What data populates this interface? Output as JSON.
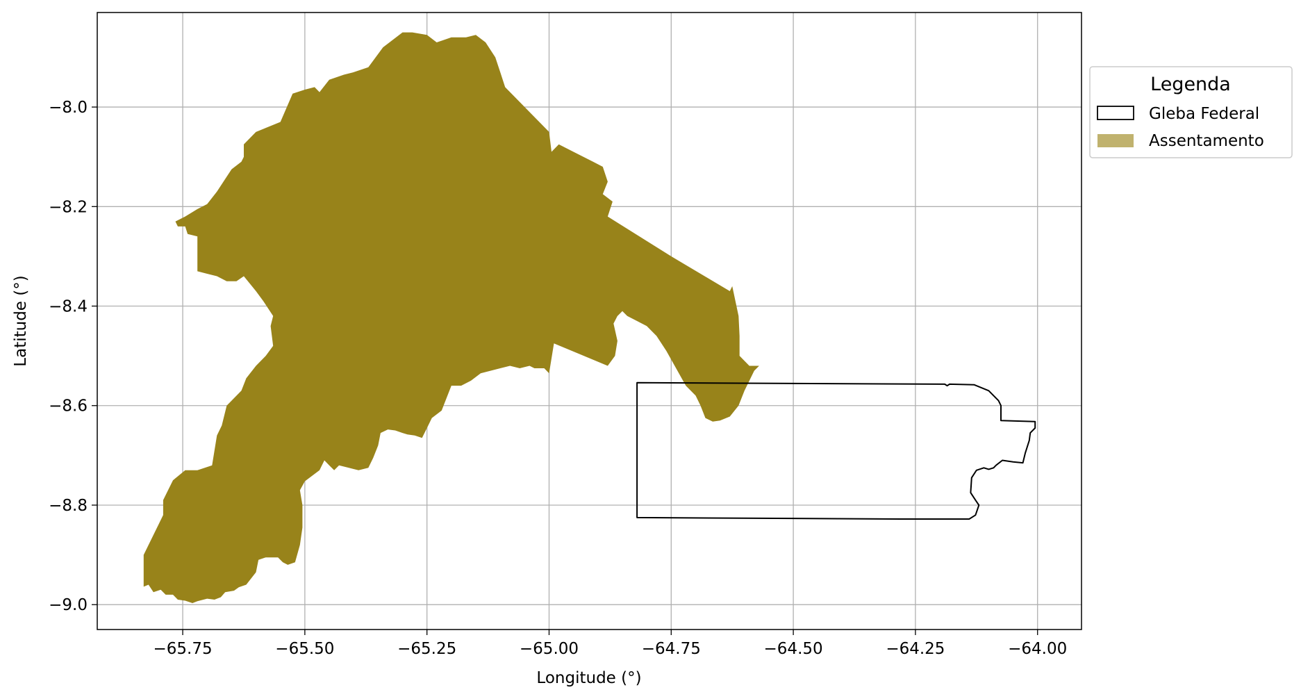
{
  "chart_data": {
    "type": "map",
    "title": "",
    "xlabel": "Longitude (°)",
    "ylabel": "Latitude (°)",
    "xlim": [
      -65.925,
      -63.91
    ],
    "ylim": [
      -9.05,
      -7.81
    ],
    "grid": true,
    "x_ticks": [
      -65.75,
      -65.5,
      -65.25,
      -65.0,
      -64.75,
      -64.5,
      -64.25,
      -64.0
    ],
    "x_tick_labels": [
      "−65.75",
      "−65.50",
      "−65.25",
      "−65.00",
      "−64.75",
      "−64.50",
      "−64.25",
      "−64.00"
    ],
    "y_ticks": [
      -8.0,
      -8.2,
      -8.4,
      -8.6,
      -8.8,
      -9.0
    ],
    "y_tick_labels": [
      "−8.0",
      "−8.2",
      "−8.4",
      "−8.6",
      "−8.8",
      "−9.0"
    ],
    "legend": {
      "title": "Legenda",
      "placement": "outside-upper-right",
      "entries": [
        {
          "label": "Gleba Federal",
          "style": "outline",
          "color": "#000000"
        },
        {
          "label": "Assentamento",
          "style": "fill",
          "color": "#c0b26e"
        }
      ]
    },
    "layers": [
      {
        "name": "Assentamento",
        "kind": "polygon",
        "fill": "#98831a",
        "coordinates": [
          [
            -65.83,
            -8.964
          ],
          [
            -65.82,
            -8.96
          ],
          [
            -65.81,
            -8.975
          ],
          [
            -65.795,
            -8.97
          ],
          [
            -65.785,
            -8.98
          ],
          [
            -65.77,
            -8.98
          ],
          [
            -65.76,
            -8.99
          ],
          [
            -65.745,
            -8.992
          ],
          [
            -65.73,
            -8.997
          ],
          [
            -65.72,
            -8.993
          ],
          [
            -65.7,
            -8.988
          ],
          [
            -65.685,
            -8.99
          ],
          [
            -65.672,
            -8.985
          ],
          [
            -65.663,
            -8.975
          ],
          [
            -65.645,
            -8.972
          ],
          [
            -65.635,
            -8.965
          ],
          [
            -65.62,
            -8.96
          ],
          [
            -65.6,
            -8.935
          ],
          [
            -65.595,
            -8.91
          ],
          [
            -65.58,
            -8.905
          ],
          [
            -65.555,
            -8.905
          ],
          [
            -65.545,
            -8.915
          ],
          [
            -65.535,
            -8.92
          ],
          [
            -65.52,
            -8.915
          ],
          [
            -65.51,
            -8.88
          ],
          [
            -65.505,
            -8.845
          ],
          [
            -65.505,
            -8.8
          ],
          [
            -65.51,
            -8.77
          ],
          [
            -65.5,
            -8.752
          ],
          [
            -65.47,
            -8.73
          ],
          [
            -65.46,
            -8.71
          ],
          [
            -65.45,
            -8.72
          ],
          [
            -65.44,
            -8.73
          ],
          [
            -65.43,
            -8.72
          ],
          [
            -65.41,
            -8.725
          ],
          [
            -65.39,
            -8.73
          ],
          [
            -65.37,
            -8.725
          ],
          [
            -65.36,
            -8.705
          ],
          [
            -65.35,
            -8.68
          ],
          [
            -65.345,
            -8.655
          ],
          [
            -65.33,
            -8.648
          ],
          [
            -65.315,
            -8.65
          ],
          [
            -65.3,
            -8.655
          ],
          [
            -65.29,
            -8.658
          ],
          [
            -65.275,
            -8.66
          ],
          [
            -65.26,
            -8.665
          ],
          [
            -65.25,
            -8.645
          ],
          [
            -65.24,
            -8.625
          ],
          [
            -65.22,
            -8.61
          ],
          [
            -65.2,
            -8.56
          ],
          [
            -65.18,
            -8.56
          ],
          [
            -65.16,
            -8.55
          ],
          [
            -65.14,
            -8.535
          ],
          [
            -65.12,
            -8.53
          ],
          [
            -65.1,
            -8.525
          ],
          [
            -65.08,
            -8.52
          ],
          [
            -65.06,
            -8.525
          ],
          [
            -65.04,
            -8.52
          ],
          [
            -65.03,
            -8.525
          ],
          [
            -65.01,
            -8.525
          ],
          [
            -65.0,
            -8.535
          ],
          [
            -64.99,
            -8.475
          ],
          [
            -64.88,
            -8.52
          ],
          [
            -64.865,
            -8.5
          ],
          [
            -64.86,
            -8.47
          ],
          [
            -64.868,
            -8.435
          ],
          [
            -64.86,
            -8.42
          ],
          [
            -64.85,
            -8.41
          ],
          [
            -64.84,
            -8.42
          ],
          [
            -64.82,
            -8.43
          ],
          [
            -64.8,
            -8.44
          ],
          [
            -64.78,
            -8.46
          ],
          [
            -64.76,
            -8.49
          ],
          [
            -64.74,
            -8.525
          ],
          [
            -64.72,
            -8.56
          ],
          [
            -64.7,
            -8.58
          ],
          [
            -64.69,
            -8.6
          ],
          [
            -64.68,
            -8.625
          ],
          [
            -64.665,
            -8.632
          ],
          [
            -64.65,
            -8.63
          ],
          [
            -64.63,
            -8.622
          ],
          [
            -64.612,
            -8.6
          ],
          [
            -64.6,
            -8.57
          ],
          [
            -64.58,
            -8.53
          ],
          [
            -64.57,
            -8.52
          ],
          [
            -64.59,
            -8.52
          ],
          [
            -64.61,
            -8.5
          ],
          [
            -64.61,
            -8.49
          ],
          [
            -64.61,
            -8.46
          ],
          [
            -64.612,
            -8.42
          ],
          [
            -64.625,
            -8.36
          ],
          [
            -64.63,
            -8.37
          ],
          [
            -64.75,
            -8.3
          ],
          [
            -64.88,
            -8.22
          ],
          [
            -64.87,
            -8.19
          ],
          [
            -64.89,
            -8.175
          ],
          [
            -64.88,
            -8.15
          ],
          [
            -64.89,
            -8.12
          ],
          [
            -64.91,
            -8.11
          ],
          [
            -64.95,
            -8.09
          ],
          [
            -64.98,
            -8.075
          ],
          [
            -64.995,
            -8.09
          ],
          [
            -65.0,
            -8.05
          ],
          [
            -65.02,
            -8.03
          ],
          [
            -65.06,
            -7.99
          ],
          [
            -65.09,
            -7.96
          ],
          [
            -65.1,
            -7.93
          ],
          [
            -65.11,
            -7.9
          ],
          [
            -65.13,
            -7.87
          ],
          [
            -65.15,
            -7.855
          ],
          [
            -65.17,
            -7.86
          ],
          [
            -65.2,
            -7.86
          ],
          [
            -65.23,
            -7.87
          ],
          [
            -65.25,
            -7.855
          ],
          [
            -65.28,
            -7.85
          ],
          [
            -65.3,
            -7.85
          ],
          [
            -65.34,
            -7.88
          ],
          [
            -65.37,
            -7.92
          ],
          [
            -65.4,
            -7.93
          ],
          [
            -65.42,
            -7.935
          ],
          [
            -65.45,
            -7.945
          ],
          [
            -65.47,
            -7.97
          ],
          [
            -65.48,
            -7.96
          ],
          [
            -65.5,
            -7.965
          ],
          [
            -65.525,
            -7.973
          ],
          [
            -65.55,
            -8.03
          ],
          [
            -65.6,
            -8.05
          ],
          [
            -65.625,
            -8.075
          ],
          [
            -65.625,
            -8.1
          ],
          [
            -65.63,
            -8.11
          ],
          [
            -65.65,
            -8.125
          ],
          [
            -65.66,
            -8.14
          ],
          [
            -65.68,
            -8.17
          ],
          [
            -65.7,
            -8.195
          ],
          [
            -65.72,
            -8.205
          ],
          [
            -65.745,
            -8.22
          ],
          [
            -65.765,
            -8.23
          ],
          [
            -65.76,
            -8.24
          ],
          [
            -65.745,
            -8.24
          ],
          [
            -65.74,
            -8.255
          ],
          [
            -65.72,
            -8.26
          ],
          [
            -65.72,
            -8.3
          ],
          [
            -65.72,
            -8.33
          ],
          [
            -65.7,
            -8.335
          ],
          [
            -65.68,
            -8.34
          ],
          [
            -65.66,
            -8.35
          ],
          [
            -65.64,
            -8.35
          ],
          [
            -65.625,
            -8.34
          ],
          [
            -65.6,
            -8.37
          ],
          [
            -65.585,
            -8.39
          ],
          [
            -65.565,
            -8.42
          ],
          [
            -65.57,
            -8.44
          ],
          [
            -65.565,
            -8.48
          ],
          [
            -65.58,
            -8.5
          ],
          [
            -65.6,
            -8.52
          ],
          [
            -65.62,
            -8.545
          ],
          [
            -65.63,
            -8.57
          ],
          [
            -65.66,
            -8.6
          ],
          [
            -65.67,
            -8.64
          ],
          [
            -65.68,
            -8.66
          ],
          [
            -65.69,
            -8.72
          ],
          [
            -65.72,
            -8.73
          ],
          [
            -65.745,
            -8.73
          ],
          [
            -65.77,
            -8.75
          ],
          [
            -65.79,
            -8.79
          ],
          [
            -65.79,
            -8.82
          ],
          [
            -65.8,
            -8.84
          ],
          [
            -65.83,
            -8.9
          ],
          [
            -65.83,
            -8.964
          ]
        ]
      },
      {
        "name": "Gleba Federal",
        "kind": "outline",
        "stroke": "#000000",
        "coordinates": [
          [
            -64.82,
            -8.554
          ],
          [
            -64.19,
            -8.557
          ],
          [
            -64.185,
            -8.56
          ],
          [
            -64.18,
            -8.557
          ],
          [
            -64.13,
            -8.558
          ],
          [
            -64.1,
            -8.57
          ],
          [
            -64.08,
            -8.59
          ],
          [
            -64.075,
            -8.6
          ],
          [
            -64.075,
            -8.63
          ],
          [
            -64.005,
            -8.632
          ],
          [
            -64.005,
            -8.645
          ],
          [
            -64.015,
            -8.655
          ],
          [
            -64.017,
            -8.67
          ],
          [
            -64.025,
            -8.695
          ],
          [
            -64.03,
            -8.715
          ],
          [
            -64.05,
            -8.713
          ],
          [
            -64.072,
            -8.71
          ],
          [
            -64.085,
            -8.72
          ],
          [
            -64.09,
            -8.725
          ],
          [
            -64.1,
            -8.728
          ],
          [
            -64.11,
            -8.725
          ],
          [
            -64.125,
            -8.73
          ],
          [
            -64.135,
            -8.745
          ],
          [
            -64.137,
            -8.775
          ],
          [
            -64.127,
            -8.79
          ],
          [
            -64.12,
            -8.8
          ],
          [
            -64.127,
            -8.82
          ],
          [
            -64.14,
            -8.828
          ],
          [
            -64.28,
            -8.828
          ],
          [
            -64.82,
            -8.825
          ],
          [
            -64.82,
            -8.554
          ]
        ]
      }
    ]
  }
}
